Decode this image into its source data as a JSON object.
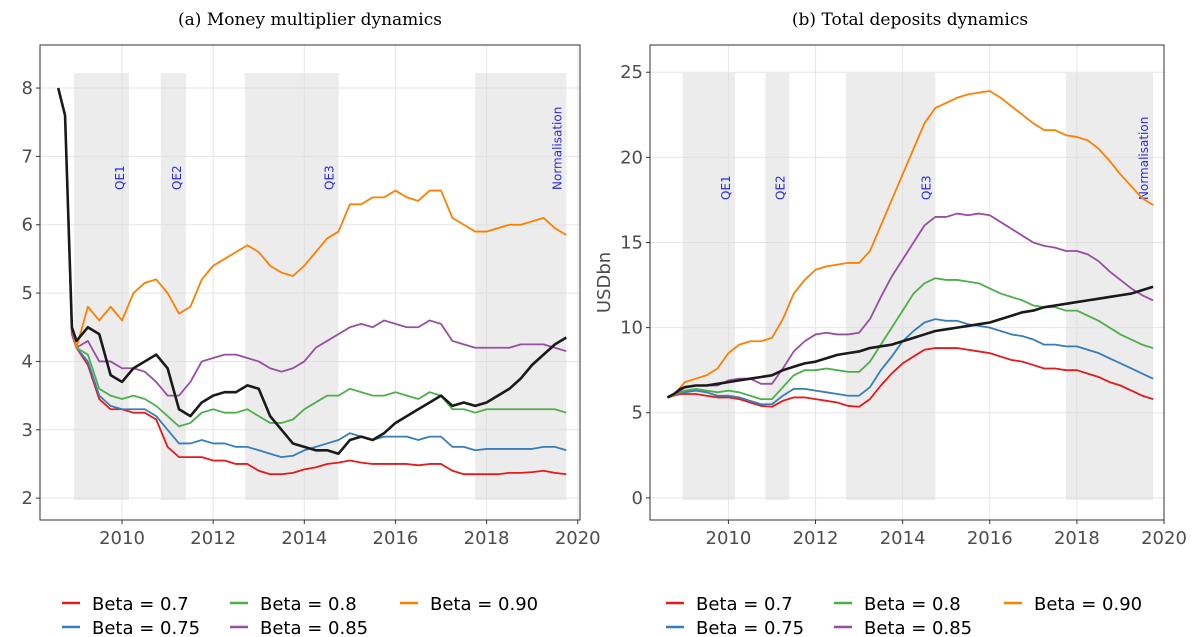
{
  "chart_data": [
    {
      "type": "line",
      "title": "(a) Money multiplier dynamics",
      "x": [
        2008.6,
        2008.75,
        2008.9,
        2009.0,
        2009.25,
        2009.5,
        2009.75,
        2010.0,
        2010.25,
        2010.5,
        2010.75,
        2011.0,
        2011.25,
        2011.5,
        2011.75,
        2012.0,
        2012.25,
        2012.5,
        2012.75,
        2013.0,
        2013.25,
        2013.5,
        2013.75,
        2014.0,
        2014.25,
        2014.5,
        2014.75,
        2015.0,
        2015.25,
        2015.5,
        2015.75,
        2016.0,
        2016.25,
        2016.5,
        2016.75,
        2017.0,
        2017.25,
        2017.5,
        2017.75,
        2018.0,
        2018.25,
        2018.5,
        2018.75,
        2019.0,
        2019.25,
        2019.5,
        2019.75
      ],
      "series": [
        {
          "name": "Beta = 0.7",
          "color": "#e41a1c",
          "values": [
            8.0,
            7.6,
            4.4,
            4.2,
            3.95,
            3.45,
            3.3,
            3.3,
            3.25,
            3.25,
            3.15,
            2.75,
            2.6,
            2.6,
            2.6,
            2.55,
            2.55,
            2.5,
            2.5,
            2.4,
            2.35,
            2.35,
            2.37,
            2.42,
            2.45,
            2.5,
            2.52,
            2.55,
            2.52,
            2.5,
            2.5,
            2.5,
            2.5,
            2.48,
            2.5,
            2.5,
            2.4,
            2.35,
            2.35,
            2.35,
            2.35,
            2.37,
            2.37,
            2.38,
            2.4,
            2.37,
            2.35
          ]
        },
        {
          "name": "Beta = 0.75",
          "color": "#377eb8",
          "values": [
            8.0,
            7.6,
            4.4,
            4.2,
            4.0,
            3.5,
            3.35,
            3.3,
            3.3,
            3.3,
            3.2,
            3.0,
            2.8,
            2.8,
            2.85,
            2.8,
            2.8,
            2.75,
            2.75,
            2.7,
            2.65,
            2.6,
            2.62,
            2.7,
            2.75,
            2.8,
            2.85,
            2.95,
            2.9,
            2.85,
            2.9,
            2.9,
            2.9,
            2.85,
            2.9,
            2.9,
            2.75,
            2.75,
            2.7,
            2.72,
            2.72,
            2.72,
            2.72,
            2.72,
            2.75,
            2.75,
            2.7
          ]
        },
        {
          "name": "Beta = 0.8",
          "color": "#4daf4a",
          "values": [
            8.0,
            7.6,
            4.4,
            4.2,
            4.1,
            3.6,
            3.5,
            3.45,
            3.5,
            3.45,
            3.35,
            3.2,
            3.05,
            3.1,
            3.25,
            3.3,
            3.25,
            3.25,
            3.3,
            3.2,
            3.1,
            3.1,
            3.15,
            3.3,
            3.4,
            3.5,
            3.5,
            3.6,
            3.55,
            3.5,
            3.5,
            3.55,
            3.5,
            3.45,
            3.55,
            3.5,
            3.3,
            3.3,
            3.25,
            3.3,
            3.3,
            3.3,
            3.3,
            3.3,
            3.3,
            3.3,
            3.25
          ]
        },
        {
          "name": "Beta = 0.85",
          "color": "#984ea3",
          "values": [
            8.0,
            7.6,
            4.4,
            4.2,
            4.3,
            4.0,
            4.0,
            3.9,
            3.9,
            3.85,
            3.7,
            3.5,
            3.5,
            3.7,
            4.0,
            4.05,
            4.1,
            4.1,
            4.05,
            4.0,
            3.9,
            3.85,
            3.9,
            4.0,
            4.2,
            4.3,
            4.4,
            4.5,
            4.55,
            4.5,
            4.6,
            4.55,
            4.5,
            4.5,
            4.6,
            4.55,
            4.3,
            4.25,
            4.2,
            4.2,
            4.2,
            4.2,
            4.25,
            4.25,
            4.25,
            4.2,
            4.15
          ]
        },
        {
          "name": "Beta = 0.90",
          "color": "#ff7f00",
          "values": [
            8.0,
            7.6,
            4.5,
            4.2,
            4.8,
            4.6,
            4.8,
            4.6,
            5.0,
            5.15,
            5.2,
            5.0,
            4.7,
            4.8,
            5.2,
            5.4,
            5.5,
            5.6,
            5.7,
            5.6,
            5.4,
            5.3,
            5.25,
            5.4,
            5.6,
            5.8,
            5.9,
            6.3,
            6.3,
            6.4,
            6.4,
            6.5,
            6.4,
            6.35,
            6.5,
            6.5,
            6.1,
            6.0,
            5.9,
            5.9,
            5.95,
            6.0,
            6.0,
            6.05,
            6.1,
            5.95,
            5.85
          ]
        },
        {
          "color": "#1a1a1a",
          "values": [
            8.0,
            7.6,
            4.5,
            4.3,
            4.5,
            4.4,
            3.8,
            3.7,
            3.9,
            4.0,
            4.1,
            3.9,
            3.3,
            3.2,
            3.4,
            3.5,
            3.55,
            3.55,
            3.65,
            3.6,
            3.2,
            3.0,
            2.8,
            2.75,
            2.7,
            2.7,
            2.65,
            2.85,
            2.9,
            2.85,
            2.95,
            3.1,
            3.2,
            3.3,
            3.4,
            3.5,
            3.35,
            3.4,
            3.35,
            3.4,
            3.5,
            3.6,
            3.75,
            3.95,
            4.1,
            4.25,
            4.35
          ]
        }
      ],
      "regions": [
        {
          "label": "QE1",
          "start": 2008.95,
          "end": 2010.15
        },
        {
          "label": "QE2",
          "start": 2010.85,
          "end": 2011.4
        },
        {
          "label": "QE3",
          "start": 2012.7,
          "end": 2014.75
        },
        {
          "label": "Normalisation",
          "start": 2017.75,
          "end": 2019.75
        }
      ],
      "xlim": [
        2008.2,
        2020.05
      ],
      "xticks": [
        2010,
        2012,
        2014,
        2016,
        2018,
        2020
      ],
      "ylim": [
        1.68,
        8.63
      ],
      "yticks": [
        2,
        3,
        4,
        5,
        6,
        7,
        8
      ],
      "grid": true,
      "legend": "bottom"
    },
    {
      "type": "line",
      "title": "(b) Total deposits dynamics",
      "y_label": "USDbn",
      "x": [
        2008.6,
        2008.75,
        2008.9,
        2009.0,
        2009.25,
        2009.5,
        2009.75,
        2010.0,
        2010.25,
        2010.5,
        2010.75,
        2011.0,
        2011.25,
        2011.5,
        2011.75,
        2012.0,
        2012.25,
        2012.5,
        2012.75,
        2013.0,
        2013.25,
        2013.5,
        2013.75,
        2014.0,
        2014.25,
        2014.5,
        2014.75,
        2015.0,
        2015.25,
        2015.5,
        2015.75,
        2016.0,
        2016.25,
        2016.5,
        2016.75,
        2017.0,
        2017.25,
        2017.5,
        2017.75,
        2018.0,
        2018.25,
        2018.5,
        2018.75,
        2019.0,
        2019.25,
        2019.5,
        2019.75
      ],
      "series": [
        {
          "name": "Beta = 0.7",
          "color": "#e41a1c",
          "values": [
            5.9,
            6.0,
            6.1,
            6.1,
            6.1,
            6.0,
            5.9,
            5.9,
            5.8,
            5.6,
            5.4,
            5.35,
            5.7,
            5.9,
            5.9,
            5.8,
            5.7,
            5.6,
            5.4,
            5.35,
            5.8,
            6.6,
            7.3,
            7.9,
            8.3,
            8.7,
            8.8,
            8.8,
            8.8,
            8.7,
            8.6,
            8.5,
            8.3,
            8.1,
            8.0,
            7.8,
            7.6,
            7.6,
            7.5,
            7.5,
            7.3,
            7.1,
            6.8,
            6.6,
            6.3,
            6.0,
            5.8
          ]
        },
        {
          "name": "Beta = 0.75",
          "color": "#377eb8",
          "values": [
            5.9,
            6.0,
            6.2,
            6.2,
            6.3,
            6.2,
            6.0,
            6.0,
            5.9,
            5.7,
            5.5,
            5.5,
            6.0,
            6.4,
            6.4,
            6.3,
            6.2,
            6.1,
            6.0,
            6.0,
            6.5,
            7.5,
            8.3,
            9.2,
            9.8,
            10.3,
            10.5,
            10.4,
            10.4,
            10.2,
            10.1,
            10.0,
            9.8,
            9.6,
            9.5,
            9.3,
            9.0,
            9.0,
            8.9,
            8.9,
            8.7,
            8.5,
            8.2,
            7.9,
            7.6,
            7.3,
            7.0
          ]
        },
        {
          "name": "Beta = 0.8",
          "color": "#4daf4a",
          "values": [
            5.9,
            6.0,
            6.2,
            6.3,
            6.4,
            6.3,
            6.2,
            6.3,
            6.2,
            6.0,
            5.8,
            5.8,
            6.5,
            7.2,
            7.5,
            7.5,
            7.6,
            7.5,
            7.4,
            7.4,
            8.0,
            9.0,
            10.0,
            11.0,
            12.0,
            12.6,
            12.9,
            12.8,
            12.8,
            12.7,
            12.6,
            12.3,
            12.0,
            11.8,
            11.6,
            11.3,
            11.2,
            11.2,
            11.0,
            11.0,
            10.7,
            10.4,
            10.0,
            9.6,
            9.3,
            9.0,
            8.8
          ]
        },
        {
          "name": "Beta = 0.85",
          "color": "#984ea3",
          "values": [
            5.9,
            6.0,
            6.3,
            6.5,
            6.6,
            6.6,
            6.6,
            6.9,
            7.0,
            7.0,
            6.7,
            6.7,
            7.6,
            8.6,
            9.2,
            9.6,
            9.7,
            9.6,
            9.6,
            9.7,
            10.5,
            11.8,
            13.0,
            14.0,
            15.0,
            16.0,
            16.5,
            16.5,
            16.7,
            16.6,
            16.7,
            16.6,
            16.2,
            15.8,
            15.4,
            15.0,
            14.8,
            14.7,
            14.5,
            14.5,
            14.3,
            13.9,
            13.3,
            12.8,
            12.3,
            11.9,
            11.6
          ]
        },
        {
          "name": "Beta = 0.90",
          "color": "#ff7f00",
          "values": [
            5.9,
            6.0,
            6.5,
            6.8,
            7.0,
            7.2,
            7.6,
            8.5,
            9.0,
            9.2,
            9.2,
            9.4,
            10.5,
            12.0,
            12.8,
            13.4,
            13.6,
            13.7,
            13.8,
            13.8,
            14.5,
            16.0,
            17.5,
            19.0,
            20.5,
            22.0,
            22.9,
            23.2,
            23.5,
            23.7,
            23.8,
            23.9,
            23.5,
            23.0,
            22.5,
            22.0,
            21.6,
            21.6,
            21.3,
            21.2,
            21.0,
            20.5,
            19.8,
            19.0,
            18.3,
            17.6,
            17.2
          ]
        },
        {
          "color": "#1a1a1a",
          "values": [
            5.9,
            6.1,
            6.4,
            6.5,
            6.6,
            6.6,
            6.7,
            6.8,
            6.9,
            7.0,
            7.1,
            7.2,
            7.5,
            7.7,
            7.9,
            8.0,
            8.2,
            8.4,
            8.5,
            8.6,
            8.8,
            8.9,
            9.0,
            9.2,
            9.4,
            9.6,
            9.8,
            9.9,
            10.0,
            10.1,
            10.2,
            10.3,
            10.5,
            10.7,
            10.9,
            11.0,
            11.2,
            11.3,
            11.4,
            11.5,
            11.6,
            11.7,
            11.8,
            11.9,
            12.0,
            12.2,
            12.4
          ]
        }
      ],
      "regions": [
        {
          "label": "QE1",
          "start": 2008.95,
          "end": 2010.15
        },
        {
          "label": "QE2",
          "start": 2010.85,
          "end": 2011.4
        },
        {
          "label": "QE3",
          "start": 2012.7,
          "end": 2014.75
        },
        {
          "label": "Normalisation",
          "start": 2017.75,
          "end": 2019.75
        }
      ],
      "xlim": [
        2008.2,
        2020.0
      ],
      "xticks": [
        2010,
        2012,
        2014,
        2016,
        2018,
        2020
      ],
      "ylim": [
        -1.3,
        26.6
      ],
      "yticks": [
        0,
        5,
        10,
        15,
        20,
        25
      ],
      "grid": true,
      "legend": "bottom"
    }
  ]
}
